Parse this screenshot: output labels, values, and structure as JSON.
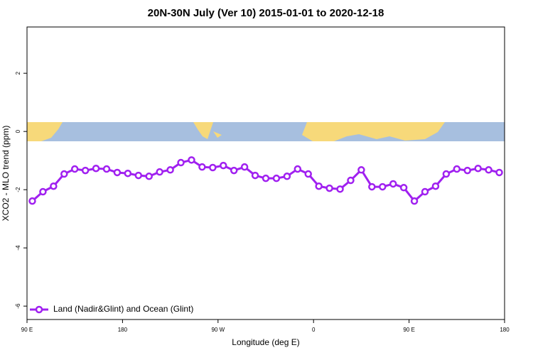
{
  "chart_data": {
    "type": "line",
    "title": "20N-30N July (Ver 10)   2015-01-01 to 2020-12-18",
    "x_label": "Longitude (deg E)",
    "y_label": "XCO2 - MLO trend (ppm)",
    "x": [
      95,
      105,
      115,
      125,
      135,
      145,
      155,
      165,
      175,
      185,
      195,
      205,
      215,
      225,
      235,
      245,
      255,
      265,
      275,
      285,
      295,
      305,
      315,
      325,
      335,
      345,
      355,
      365,
      375,
      385,
      395,
      405,
      415,
      425,
      435,
      445,
      455,
      465,
      475,
      485,
      495,
      505,
      515,
      525,
      535
    ],
    "series": [
      {
        "name": "Land (Nadir&Glint) and Ocean (Glint)",
        "color": "#a020f0",
        "values": [
          -2.39,
          -2.07,
          -1.88,
          -1.46,
          -1.29,
          -1.34,
          -1.27,
          -1.29,
          -1.41,
          -1.44,
          -1.51,
          -1.54,
          -1.39,
          -1.32,
          -1.07,
          -0.98,
          -1.22,
          -1.24,
          -1.17,
          -1.34,
          -1.22,
          -1.51,
          -1.61,
          -1.61,
          -1.54,
          -1.29,
          -1.46,
          -1.88,
          -1.95,
          -1.98,
          -1.68,
          -1.32,
          -1.9,
          -1.9,
          -1.8,
          -1.93,
          -2.39,
          -2.07,
          -1.88,
          -1.46,
          -1.29,
          -1.34,
          -1.27,
          -1.32,
          -1.41
        ]
      }
    ],
    "xlim": [
      90,
      540
    ],
    "xticks": [
      {
        "value": 90,
        "label": "90 E"
      },
      {
        "value": 180,
        "label": "180"
      },
      {
        "value": 270,
        "label": "90 W"
      },
      {
        "value": 360,
        "label": "0"
      },
      {
        "value": 450,
        "label": "90 E"
      },
      {
        "value": 540,
        "label": "180"
      }
    ],
    "ylim": [
      -6.46,
      3.59
    ],
    "yticks": [
      -6,
      -4,
      -2,
      0,
      2
    ],
    "legend": "bottom-left"
  }
}
